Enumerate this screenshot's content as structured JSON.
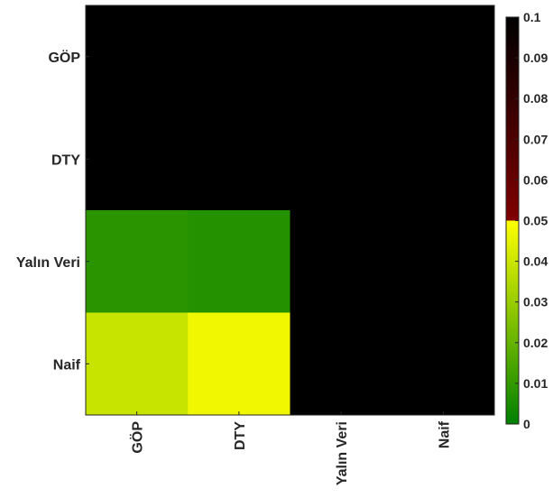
{
  "chart_data": {
    "type": "heatmap",
    "rows": [
      "GÖP",
      "DTY",
      "Yalın Veri",
      "Naif"
    ],
    "columns": [
      "GÖP",
      "DTY",
      "Yalın Veri",
      "Naif"
    ],
    "values": [
      [
        0.1,
        0.1,
        0.1,
        0.1
      ],
      [
        0.1,
        0.1,
        0.1,
        0.1
      ],
      [
        0.008,
        0.007,
        0.1,
        0.1
      ],
      [
        0.039,
        0.047,
        0.1,
        0.1
      ]
    ],
    "colorbar": {
      "range": [
        0,
        0.1
      ],
      "ticks": [
        "0",
        "0.01",
        "0.02",
        "0.03",
        "0.04",
        "0.05",
        "0.06",
        "0.07",
        "0.08",
        "0.09",
        "0.1"
      ],
      "colormap": [
        {
          "value": 0,
          "color": "#008000"
        },
        {
          "value": 0.05,
          "color": "#ffff00"
        },
        {
          "value": 0.05,
          "color": "#800000"
        },
        {
          "value": 0.1,
          "color": "#000000"
        }
      ]
    },
    "grid": false
  }
}
